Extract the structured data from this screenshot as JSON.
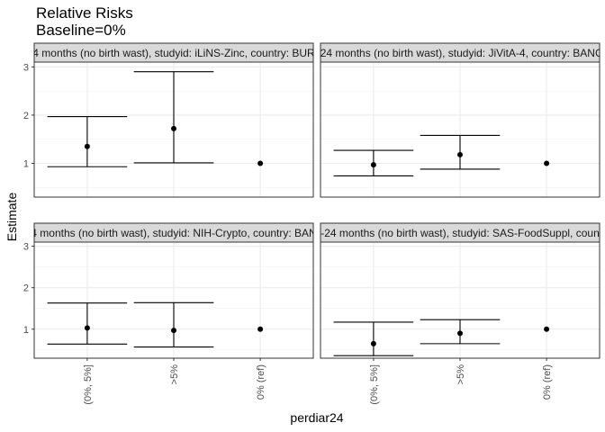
{
  "chart_data": {
    "type": "errorbar",
    "title": "Relative Risks",
    "subtitle": "Baseline=0%",
    "xlabel": "perdiar24",
    "ylabel": "Estimate",
    "ylim": [
      0.3,
      3.1
    ],
    "yticks": [
      1,
      2,
      3
    ],
    "categories": [
      "(0%, 5%]",
      ">5%",
      "0% (ref)"
    ],
    "grid": true,
    "panels": [
      {
        "label": "4 months (no birth wast), studyid: iLiNS-Zinc, country: BUR",
        "points": [
          {
            "category": "(0%, 5%]",
            "estimate": 1.35,
            "lower": 0.93,
            "upper": 1.97
          },
          {
            "category": ">5%",
            "estimate": 1.72,
            "lower": 1.01,
            "upper": 2.9
          },
          {
            "category": "0% (ref)",
            "estimate": 1.0
          }
        ]
      },
      {
        "label": "-24 months (no birth wast), studyid: JiVitA-4, country: BANG",
        "points": [
          {
            "category": "(0%, 5%]",
            "estimate": 0.97,
            "lower": 0.74,
            "upper": 1.27
          },
          {
            "category": ">5%",
            "estimate": 1.18,
            "lower": 0.88,
            "upper": 1.58
          },
          {
            "category": "0% (ref)",
            "estimate": 1.0
          }
        ]
      },
      {
        "label": "4 months (no birth wast), studyid: NIH-Crypto, country: BAN",
        "points": [
          {
            "category": "(0%, 5%]",
            "estimate": 1.03,
            "lower": 0.64,
            "upper": 1.63
          },
          {
            "category": ">5%",
            "estimate": 0.97,
            "lower": 0.57,
            "upper": 1.64
          },
          {
            "category": "0% (ref)",
            "estimate": 1.0
          }
        ]
      },
      {
        "label": "-24 months (no birth wast), studyid: SAS-FoodSuppl, coun",
        "points": [
          {
            "category": "(0%, 5%]",
            "estimate": 0.65,
            "lower": 0.36,
            "upper": 1.17
          },
          {
            "category": ">5%",
            "estimate": 0.9,
            "lower": 0.65,
            "upper": 1.23
          },
          {
            "category": "0% (ref)",
            "estimate": 1.0
          }
        ]
      }
    ]
  }
}
